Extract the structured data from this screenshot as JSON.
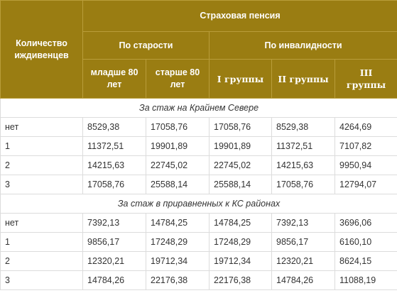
{
  "table": {
    "header": {
      "dependents_label": "Количество иждивенцев",
      "pension_title": "Страховая пенсия",
      "old_age_label": "По старости",
      "disability_label": "По инвалидности",
      "subcolumns": [
        "младше 80 лет",
        "старше 80 лет",
        "I группы",
        "II группы",
        "III группы"
      ]
    },
    "sections": [
      {
        "title": "За стаж на Крайнем Севере",
        "rows": [
          {
            "dependents": "нет",
            "values": [
              "8529,38",
              "17058,76",
              "17058,76",
              "8529,38",
              "4264,69"
            ]
          },
          {
            "dependents": "1",
            "values": [
              "11372,51",
              "19901,89",
              "19901,89",
              "11372,51",
              "7107,82"
            ]
          },
          {
            "dependents": "2",
            "values": [
              "14215,63",
              "22745,02",
              "22745,02",
              "14215,63",
              "9950,94"
            ]
          },
          {
            "dependents": "3",
            "values": [
              "17058,76",
              "25588,14",
              "25588,14",
              "17058,76",
              "12794,07"
            ]
          }
        ]
      },
      {
        "title": "За стаж в приравненных к КС районах",
        "rows": [
          {
            "dependents": "нет",
            "values": [
              "7392,13",
              "14784,25",
              "14784,25",
              "7392,13",
              "3696,06"
            ]
          },
          {
            "dependents": "1",
            "values": [
              "9856,17",
              "17248,29",
              "17248,29",
              "9856,17",
              "6160,10"
            ]
          },
          {
            "dependents": "2",
            "values": [
              "12320,21",
              "19712,34",
              "19712,34",
              "12320,21",
              "8624,15"
            ]
          },
          {
            "dependents": "3",
            "values": [
              "14784,26",
              "22176,38",
              "22176,38",
              "14784,26",
              "11088,19"
            ]
          }
        ]
      }
    ]
  },
  "colors": {
    "header_bg": "#9a7d12",
    "header_text": "#ffffff",
    "border": "#dcdcdc"
  }
}
